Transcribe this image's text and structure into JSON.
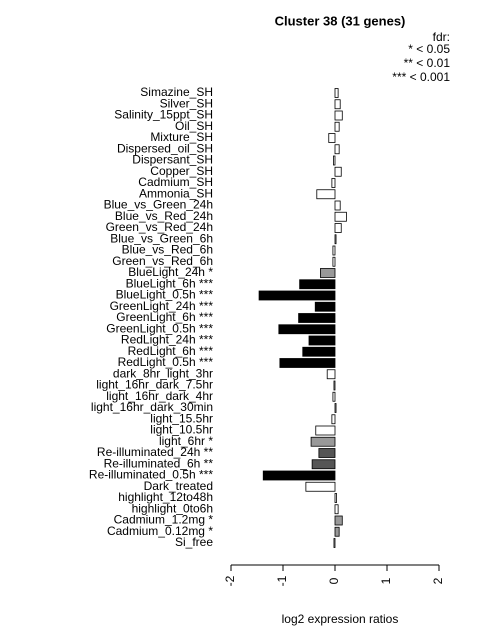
{
  "chart_data": {
    "type": "barh",
    "title": "Cluster 38 (31 genes)",
    "legend_title": "fdr:",
    "legend": [
      "* < 0.05",
      "** < 0.01",
      "*** < 0.001"
    ],
    "x_label": "log2 expression ratios",
    "categories": [
      "Simazine_SH",
      "Silver_SH",
      "Salinity_15ppt_SH",
      "Oil_SH",
      "Mixture_SH",
      "Dispersed_oil_SH",
      "Dispersant_SH",
      "Copper_SH",
      "Cadmium_SH",
      "Ammonia_SH",
      "Blue_vs_Green_24h",
      "Blue_vs_Red_24h",
      "Green_vs_Red_24h",
      "Blue_vs_Green_6h",
      "Blue_vs_Red_6h",
      "Green_vs_Red_6h",
      "BlueLight_24h *",
      "BlueLight_6h ***",
      "BlueLight_0.5h ***",
      "GreenLight_24h ***",
      "GreenLight_6h ***",
      "GreenLight_0.5h ***",
      "RedLight_24h ***",
      "RedLight_6h ***",
      "RedLight_0.5h ***",
      "dark_8hr_light_3hr",
      "light_16hr_dark_7.5hr",
      "light_16hr_dark_4hr",
      "light_16hr_dark_30min",
      "light_15.5hr",
      "light_10.5hr",
      "light_6hr *",
      "Re-illuminated_24h **",
      "Re-illuminated_6h **",
      "Re-illuminated_0.5h ***",
      "Dark_treated",
      "highlight_12to48h",
      "highlight_0to6h",
      "Cadmium_1.2mg *",
      "Cadmium_0.12mg *",
      "Si_free"
    ],
    "values": [
      0.06,
      0.1,
      0.14,
      0.08,
      -0.12,
      0.08,
      -0.03,
      0.12,
      -0.06,
      -0.35,
      0.1,
      0.22,
      0.12,
      0.02,
      -0.04,
      -0.04,
      -0.28,
      -0.68,
      -1.46,
      -0.38,
      -0.7,
      -1.08,
      -0.5,
      -0.62,
      -1.06,
      -0.15,
      -0.02,
      -0.04,
      0.02,
      -0.06,
      -0.37,
      -0.46,
      -0.31,
      -0.44,
      -1.38,
      -0.56,
      0.03,
      0.06,
      0.14,
      0.08,
      -0.02
    ],
    "colors": [
      "#ffffff",
      "#ffffff",
      "#ffffff",
      "#ffffff",
      "#ffffff",
      "#ffffff",
      "#ffffff",
      "#ffffff",
      "#ffffff",
      "#ffffff",
      "#ffffff",
      "#ffffff",
      "#ffffff",
      "#ffffff",
      "#ffffff",
      "#ffffff",
      "#999999",
      "#000000",
      "#000000",
      "#000000",
      "#000000",
      "#000000",
      "#000000",
      "#000000",
      "#000000",
      "#ffffff",
      "#ffffff",
      "#ffffff",
      "#ffffff",
      "#ffffff",
      "#ffffff",
      "#999999",
      "#555555",
      "#555555",
      "#000000",
      "#ffffff",
      "#ffffff",
      "#ffffff",
      "#999999",
      "#999999",
      "#ffffff"
    ],
    "xlim": [
      -2,
      2
    ],
    "xticks": [
      -2,
      -1,
      0,
      1,
      2
    ]
  }
}
